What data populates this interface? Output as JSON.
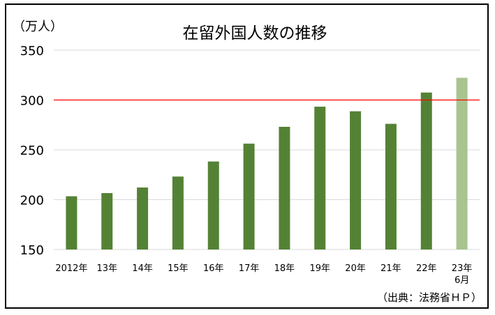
{
  "chart_data": {
    "type": "bar",
    "title": "在留外国人数の推移",
    "ylabel": "（万人）",
    "ylim": [
      150,
      350
    ],
    "yticks": [
      150,
      200,
      250,
      300,
      350
    ],
    "grid": true,
    "reference_line": {
      "value": 300,
      "color": "#ff0000"
    },
    "source": "（出典：法務省ＨＰ）",
    "colors": {
      "bar": "#548235",
      "bar_last": "#a9c48f",
      "grid": "#d9d9d9"
    },
    "categories": [
      {
        "lines": [
          "2012年"
        ]
      },
      {
        "lines": [
          "13年"
        ]
      },
      {
        "lines": [
          "14年"
        ]
      },
      {
        "lines": [
          "15年"
        ]
      },
      {
        "lines": [
          "16年"
        ]
      },
      {
        "lines": [
          "17年"
        ]
      },
      {
        "lines": [
          "18年"
        ]
      },
      {
        "lines": [
          "19年"
        ]
      },
      {
        "lines": [
          "20年"
        ]
      },
      {
        "lines": [
          "21年"
        ]
      },
      {
        "lines": [
          "22年"
        ]
      },
      {
        "lines": [
          "23年",
          "6月"
        ]
      }
    ],
    "values": [
      203.4,
      206.6,
      212.2,
      223.2,
      238.3,
      256.2,
      273.1,
      293.3,
      288.7,
      276.1,
      307.5,
      322.3
    ]
  }
}
